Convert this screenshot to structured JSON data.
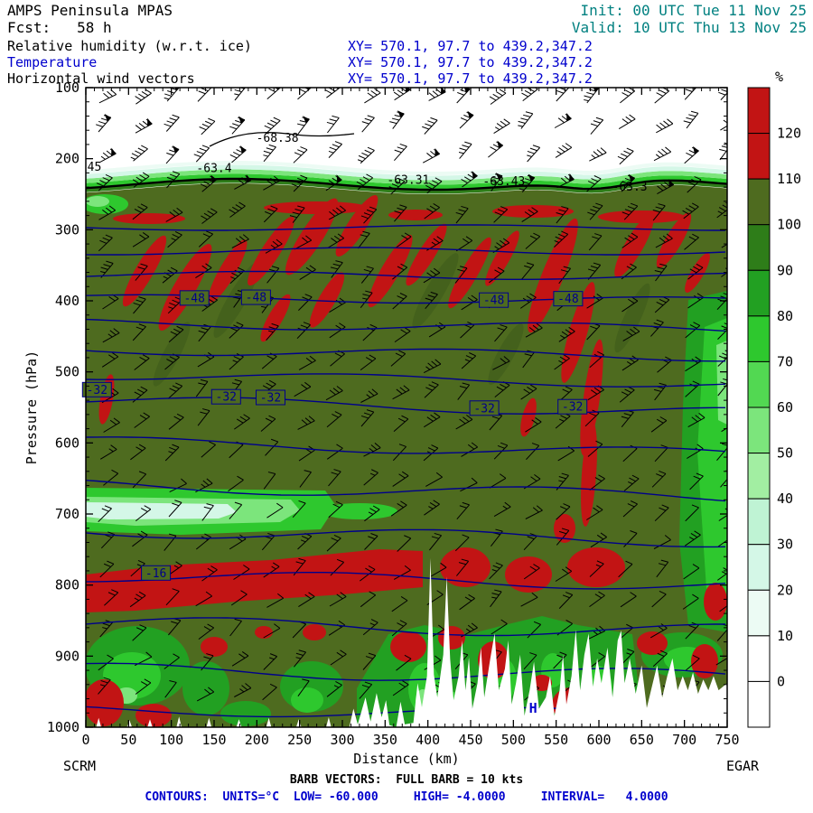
{
  "header": {
    "model": "AMPS Peninsula MPAS",
    "forecast": "Fcst:   58 h",
    "init": "Init: 00 UTC Tue 11 Nov 25",
    "valid": "Valid: 10 UTC Thu 13 Nov 25",
    "fields": [
      {
        "label": "Relative humidity (w.r.t. ice)",
        "xy": "XY= 570.1, 97.7 to 439.2,347.2"
      },
      {
        "label": "Temperature",
        "xy": "XY= 570.1, 97.7 to 439.2,347.2"
      },
      {
        "label": "Horizontal wind vectors",
        "xy": "XY= 570.1, 97.7 to 439.2,347.2"
      }
    ]
  },
  "footer": {
    "barbs": "BARB VECTORS:  FULL BARB = 10 kts",
    "contours": "CONTOURS:  UNITS=°C  LOW= -60.000     HIGH= -4.0000     INTERVAL=   4.0000"
  },
  "colors": {
    "teal_text": "#008080",
    "xy_blue": "#0000cd",
    "contour_blue": "#00008b",
    "footer_blue": "#0000cd",
    "supersaturated_red": "#c21414",
    "saturated_olive": "#4e6b1f"
  },
  "chart_data": {
    "type": "heatmap",
    "title": "Vertical cross-section: relative humidity w.r.t. ice (shaded, %), temperature (blue contours, °C), horizontal wind barbs",
    "x_axis": {
      "label": "Distance (km)",
      "min": 0,
      "max": 750,
      "major_tick": 50,
      "minor_tick": 10,
      "left_station": "SCRM",
      "right_station": "EGAR"
    },
    "y_axis": {
      "label": "Pressure (hPa)",
      "min": 100,
      "max": 1000,
      "major_tick": 100,
      "minor_tick": 20,
      "orientation": "pressure increases downward"
    },
    "colorbar": {
      "units": "%",
      "boundary_labels": [
        120,
        110,
        100,
        90,
        80,
        70,
        60,
        50,
        40,
        30,
        20,
        10,
        0
      ],
      "segment_colors_top_to_bottom": [
        "#c21414",
        "#c21414",
        "#4e6b1f",
        "#2e7d19",
        "#22a022",
        "#2ec82e",
        "#52d852",
        "#7ce57c",
        "#a2eea2",
        "#bff3d4",
        "#d4f7e7",
        "#ecfbf4",
        "#ffffff",
        "#ffffff"
      ]
    },
    "temperature_contours": {
      "units": "°C",
      "low": -60,
      "high": -4,
      "interval": 4,
      "labels": [
        {
          "text": "-48",
          "km": 127,
          "hpa": 396
        },
        {
          "text": "-48",
          "km": 199,
          "hpa": 395
        },
        {
          "text": "-48",
          "km": 477,
          "hpa": 399
        },
        {
          "text": "-48",
          "km": 564,
          "hpa": 397
        },
        {
          "text": "-32",
          "km": 13,
          "hpa": 525
        },
        {
          "text": "-32",
          "km": 164,
          "hpa": 535
        },
        {
          "text": "-32",
          "km": 216,
          "hpa": 536
        },
        {
          "text": "-32",
          "km": 466,
          "hpa": 551
        },
        {
          "text": "-32",
          "km": 569,
          "hpa": 549
        },
        {
          "text": "-16",
          "km": 82,
          "hpa": 783
        }
      ]
    },
    "black_annotations": [
      {
        "text": "45",
        "km": 10,
        "hpa": 212
      },
      {
        "text": "-63.4",
        "km": 150,
        "hpa": 214
      },
      {
        "text": "-68.38",
        "km": 224,
        "hpa": 171
      },
      {
        "text": "-63.31",
        "km": 377,
        "hpa": 230
      },
      {
        "text": "-63.43",
        "km": 489,
        "hpa": 232
      },
      {
        "text": "-63.3",
        "km": 636,
        "hpa": 240
      }
    ],
    "markers": [
      {
        "text": "H",
        "km": 523,
        "hpa": 973
      }
    ],
    "wind_barbs": {
      "full_barb_kts": 10,
      "note": "barbs plotted over entire section, strongest flow aloft"
    },
    "humidity_summary": [
      "RH < 10% (white) above ~190 hPa",
      "sharp 10 -> 100% transition band near 200 hPa",
      "deep ice-saturated layer (100-110%, dark olive) from ~220 hPa to the surface",
      "supersaturated streaks >110% (red) mainly 250-450 hPa and near 750-800 hPa",
      "drier band (30-80%) near 700 hPa over the first ~280 km",
      "moist green column near the right edge and along terrain slopes"
    ]
  }
}
